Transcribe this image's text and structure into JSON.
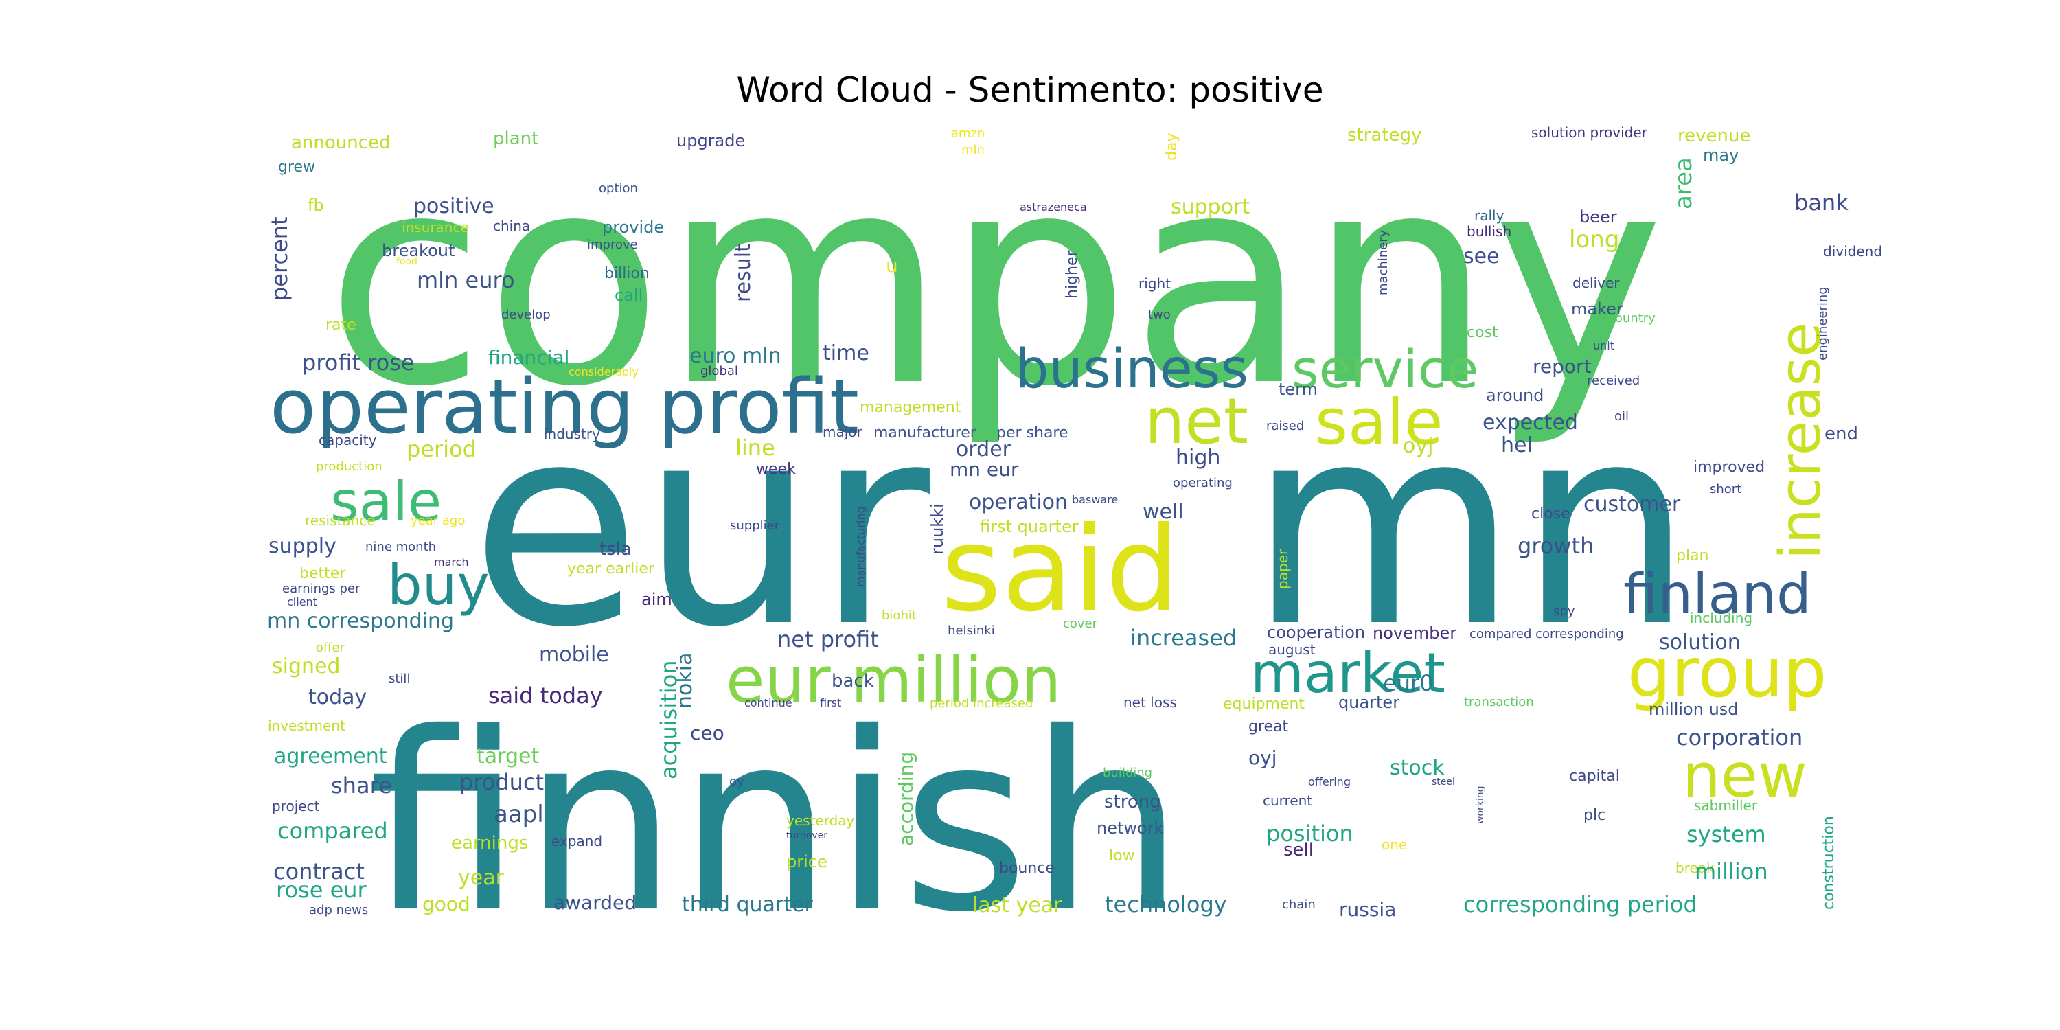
{
  "title": "Word Cloud - Sentimento: positive",
  "colors": {
    "background": "#ffffff",
    "title_text": "#000000"
  },
  "words": [
    {
      "text": "company",
      "color": "#52c569"
    },
    {
      "text": "eur",
      "color": "#25858e"
    },
    {
      "text": "mn",
      "color": "#25858e"
    },
    {
      "text": "finnish",
      "color": "#25858e"
    },
    {
      "text": "said",
      "color": "#dde318"
    },
    {
      "text": "operating profit",
      "color": "#2d708e"
    },
    {
      "text": "business",
      "color": "#2c728e"
    },
    {
      "text": "service",
      "color": "#5ec962"
    },
    {
      "text": "net",
      "color": "#c2df23"
    },
    {
      "text": "sale",
      "color": "#cde11d"
    },
    {
      "text": "sale",
      "color": "#3dbc74"
    },
    {
      "text": "increase",
      "color": "#c8e020"
    },
    {
      "text": "buy",
      "color": "#228c8d"
    },
    {
      "text": "finland",
      "color": "#355f8d"
    },
    {
      "text": "eur million",
      "color": "#86d549"
    },
    {
      "text": "market",
      "color": "#1f968b"
    },
    {
      "text": "group",
      "color": "#dde318"
    },
    {
      "text": "new",
      "color": "#c8e020"
    },
    {
      "text": "announced",
      "color": "#bddf26"
    },
    {
      "text": "plant",
      "color": "#6ccd5a"
    },
    {
      "text": "upgrade",
      "color": "#414487"
    },
    {
      "text": "amzn",
      "color": "#f0e51f"
    },
    {
      "text": "mln",
      "color": "#f0e51f"
    },
    {
      "text": "day",
      "color": "#f0e51f"
    },
    {
      "text": "strategy",
      "color": "#bddf26"
    },
    {
      "text": "solution provider",
      "color": "#46327e"
    },
    {
      "text": "revenue",
      "color": "#bddf26"
    },
    {
      "text": "may",
      "color": "#2a788e"
    },
    {
      "text": "grew",
      "color": "#2a788e"
    },
    {
      "text": "option",
      "color": "#3b528b"
    },
    {
      "text": "fb",
      "color": "#bddf26"
    },
    {
      "text": "positive",
      "color": "#3b528b"
    },
    {
      "text": "percent",
      "color": "#3e4989"
    },
    {
      "text": "insurance",
      "color": "#bddf26"
    },
    {
      "text": "china",
      "color": "#3e4989"
    },
    {
      "text": "provide",
      "color": "#2a788e"
    },
    {
      "text": "improve",
      "color": "#3b528b"
    },
    {
      "text": "astrazeneca",
      "color": "#482878"
    },
    {
      "text": "support",
      "color": "#bddf26"
    },
    {
      "text": "rally",
      "color": "#31688e"
    },
    {
      "text": "bullish",
      "color": "#482878"
    },
    {
      "text": "beer",
      "color": "#46327e"
    },
    {
      "text": "long",
      "color": "#bddf26"
    },
    {
      "text": "area",
      "color": "#3dbc74"
    },
    {
      "text": "bank",
      "color": "#3e4989"
    },
    {
      "text": "breakout",
      "color": "#3b528b"
    },
    {
      "text": "food",
      "color": "#f0e51f"
    },
    {
      "text": "billion",
      "color": "#31688e"
    },
    {
      "text": "u",
      "color": "#f0e51f"
    },
    {
      "text": "higher",
      "color": "#3e4989"
    },
    {
      "text": "see",
      "color": "#3e4989"
    },
    {
      "text": "dividend",
      "color": "#3e4989"
    },
    {
      "text": "mln euro",
      "color": "#3b528b"
    },
    {
      "text": "call",
      "color": "#21a685"
    },
    {
      "text": "result",
      "color": "#3e4989"
    },
    {
      "text": "right",
      "color": "#3e4989"
    },
    {
      "text": "deliver",
      "color": "#3e4989"
    },
    {
      "text": "machinery",
      "color": "#3e4989"
    },
    {
      "text": "rate",
      "color": "#bddf26"
    },
    {
      "text": "develop",
      "color": "#3e4989"
    },
    {
      "text": "two",
      "color": "#3e4989"
    },
    {
      "text": "maker",
      "color": "#3b528b"
    },
    {
      "text": "country",
      "color": "#5ec962"
    },
    {
      "text": "cost",
      "color": "#5ec962"
    },
    {
      "text": "engineering",
      "color": "#3e4989"
    },
    {
      "text": "profit rose",
      "color": "#3b528b"
    },
    {
      "text": "financial",
      "color": "#21a685"
    },
    {
      "text": "euro mln",
      "color": "#2a788e"
    },
    {
      "text": "time",
      "color": "#3b528b"
    },
    {
      "text": "unit",
      "color": "#3e4989"
    },
    {
      "text": "considerably",
      "color": "#f0e51f"
    },
    {
      "text": "global",
      "color": "#46327e"
    },
    {
      "text": "report",
      "color": "#3b528b"
    },
    {
      "text": "term",
      "color": "#3b528b"
    },
    {
      "text": "received",
      "color": "#3e4989"
    },
    {
      "text": "around",
      "color": "#3b528b"
    },
    {
      "text": "expected",
      "color": "#3b528b"
    },
    {
      "text": "management",
      "color": "#bddf26"
    },
    {
      "text": "oil",
      "color": "#3e4989"
    },
    {
      "text": "end",
      "color": "#3e4989"
    },
    {
      "text": "capacity",
      "color": "#3e4989"
    },
    {
      "text": "industry",
      "color": "#3b528b"
    },
    {
      "text": "major",
      "color": "#3e4989"
    },
    {
      "text": "manufacturer",
      "color": "#3b528b"
    },
    {
      "text": "per share",
      "color": "#3b528b"
    },
    {
      "text": "raised",
      "color": "#3e4989"
    },
    {
      "text": "oyj",
      "color": "#bddf26"
    },
    {
      "text": "hel",
      "color": "#3b528b"
    },
    {
      "text": "period",
      "color": "#bddf26"
    },
    {
      "text": "line",
      "color": "#bddf26"
    },
    {
      "text": "order",
      "color": "#3b528b"
    },
    {
      "text": "high",
      "color": "#3e4989"
    },
    {
      "text": "production",
      "color": "#bddf26"
    },
    {
      "text": "week",
      "color": "#46327e"
    },
    {
      "text": "mn eur",
      "color": "#3b528b"
    },
    {
      "text": "improved",
      "color": "#3e4989"
    },
    {
      "text": "operation",
      "color": "#3b528b"
    },
    {
      "text": "basware",
      "color": "#3e4989"
    },
    {
      "text": "operating",
      "color": "#3e4989"
    },
    {
      "text": "customer",
      "color": "#3b528b"
    },
    {
      "text": "short",
      "color": "#3e4989"
    },
    {
      "text": "resistance",
      "color": "#bddf26"
    },
    {
      "text": "year ago",
      "color": "#f0e51f"
    },
    {
      "text": "well",
      "color": "#3b528b"
    },
    {
      "text": "close",
      "color": "#3e4989"
    },
    {
      "text": "growth",
      "color": "#3b528b"
    },
    {
      "text": "supply",
      "color": "#3b528b"
    },
    {
      "text": "nine month",
      "color": "#3e4989"
    },
    {
      "text": "supplier",
      "color": "#3e4989"
    },
    {
      "text": "manufacturing",
      "color": "#3e4989"
    },
    {
      "text": "first quarter",
      "color": "#bddf26"
    },
    {
      "text": "plan",
      "color": "#bddf26"
    },
    {
      "text": "march",
      "color": "#482878"
    },
    {
      "text": "tsla",
      "color": "#3e4989"
    },
    {
      "text": "ruukki",
      "color": "#3e4989"
    },
    {
      "text": "paper",
      "color": "#bddf26"
    },
    {
      "text": "better",
      "color": "#bddf26"
    },
    {
      "text": "year earlier",
      "color": "#bddf26"
    },
    {
      "text": "earnings per",
      "color": "#3e4989"
    },
    {
      "text": "client",
      "color": "#3e4989"
    },
    {
      "text": "aim",
      "color": "#482878"
    },
    {
      "text": "mn corresponding",
      "color": "#2a788e"
    },
    {
      "text": "biohit",
      "color": "#bddf26"
    },
    {
      "text": "helsinki",
      "color": "#3e4989"
    },
    {
      "text": "cover",
      "color": "#5ec962"
    },
    {
      "text": "spy",
      "color": "#3e4989"
    },
    {
      "text": "including",
      "color": "#5ec962"
    },
    {
      "text": "net profit",
      "color": "#3b528b"
    },
    {
      "text": "increased",
      "color": "#2a788e"
    },
    {
      "text": "cooperation",
      "color": "#3e4989"
    },
    {
      "text": "november",
      "color": "#46327e"
    },
    {
      "text": "compared corresponding",
      "color": "#3e4989"
    },
    {
      "text": "offer",
      "color": "#bddf26"
    },
    {
      "text": "august",
      "color": "#3e4989"
    },
    {
      "text": "solution",
      "color": "#3b528b"
    },
    {
      "text": "signed",
      "color": "#bddf26"
    },
    {
      "text": "mobile",
      "color": "#3b528b"
    },
    {
      "text": "nokia",
      "color": "#2a788e"
    },
    {
      "text": "eur0",
      "color": "#2a788e"
    },
    {
      "text": "still",
      "color": "#3e4989"
    },
    {
      "text": "today",
      "color": "#3b528b"
    },
    {
      "text": "said today",
      "color": "#482878"
    },
    {
      "text": "back",
      "color": "#3b528b"
    },
    {
      "text": "continue",
      "color": "#3e4989"
    },
    {
      "text": "first",
      "color": "#3e4989"
    },
    {
      "text": "period increased",
      "color": "#bddf26"
    },
    {
      "text": "net loss",
      "color": "#3e4989"
    },
    {
      "text": "equipment",
      "color": "#bddf26"
    },
    {
      "text": "quarter",
      "color": "#3b528b"
    },
    {
      "text": "transaction",
      "color": "#5ec962"
    },
    {
      "text": "million usd",
      "color": "#3b528b"
    },
    {
      "text": "investment",
      "color": "#bddf26"
    },
    {
      "text": "ceo",
      "color": "#3e4989"
    },
    {
      "text": "great",
      "color": "#3e4989"
    },
    {
      "text": "corporation",
      "color": "#3b528b"
    },
    {
      "text": "acquisition",
      "color": "#21a685"
    },
    {
      "text": "according",
      "color": "#5ec962"
    },
    {
      "text": "agreement",
      "color": "#21a685"
    },
    {
      "text": "target",
      "color": "#6ccd5a"
    },
    {
      "text": "oyj",
      "color": "#3b528b"
    },
    {
      "text": "stock",
      "color": "#21a685"
    },
    {
      "text": "share",
      "color": "#3b528b"
    },
    {
      "text": "product",
      "color": "#3b528b"
    },
    {
      "text": "oy",
      "color": "#3e4989"
    },
    {
      "text": "building",
      "color": "#5ec962"
    },
    {
      "text": "offering",
      "color": "#3e4989"
    },
    {
      "text": "steel",
      "color": "#3e4989"
    },
    {
      "text": "working",
      "color": "#3e4989"
    },
    {
      "text": "capital",
      "color": "#3e4989"
    },
    {
      "text": "construction",
      "color": "#21a685"
    },
    {
      "text": "project",
      "color": "#3e4989"
    },
    {
      "text": "aapl",
      "color": "#3b528b"
    },
    {
      "text": "strong",
      "color": "#3b528b"
    },
    {
      "text": "current",
      "color": "#3e4989"
    },
    {
      "text": "sabmiller",
      "color": "#5ec962"
    },
    {
      "text": "compared",
      "color": "#21a685"
    },
    {
      "text": "yesterday",
      "color": "#bddf26"
    },
    {
      "text": "turnover",
      "color": "#3e4989"
    },
    {
      "text": "network",
      "color": "#3b528b"
    },
    {
      "text": "position",
      "color": "#21a685"
    },
    {
      "text": "plc",
      "color": "#3e4989"
    },
    {
      "text": "system",
      "color": "#21a685"
    },
    {
      "text": "earnings",
      "color": "#bddf26"
    },
    {
      "text": "expand",
      "color": "#3e4989"
    },
    {
      "text": "one",
      "color": "#f0e51f"
    },
    {
      "text": "contract",
      "color": "#3b528b"
    },
    {
      "text": "price",
      "color": "#bddf26"
    },
    {
      "text": "low",
      "color": "#bddf26"
    },
    {
      "text": "sell",
      "color": "#482878"
    },
    {
      "text": "year",
      "color": "#bddf26"
    },
    {
      "text": "bounce",
      "color": "#3e4989"
    },
    {
      "text": "break",
      "color": "#bddf26"
    },
    {
      "text": "million",
      "color": "#21a685"
    },
    {
      "text": "rose eur",
      "color": "#21a685"
    },
    {
      "text": "good",
      "color": "#bddf26"
    },
    {
      "text": "awarded",
      "color": "#3b528b"
    },
    {
      "text": "third quarter",
      "color": "#2a788e"
    },
    {
      "text": "last year",
      "color": "#bddf26"
    },
    {
      "text": "technology",
      "color": "#2a788e"
    },
    {
      "text": "chain",
      "color": "#3e4989"
    },
    {
      "text": "russia",
      "color": "#3b528b"
    },
    {
      "text": "corresponding period",
      "color": "#21a685"
    },
    {
      "text": "adp news",
      "color": "#3e4989"
    }
  ]
}
